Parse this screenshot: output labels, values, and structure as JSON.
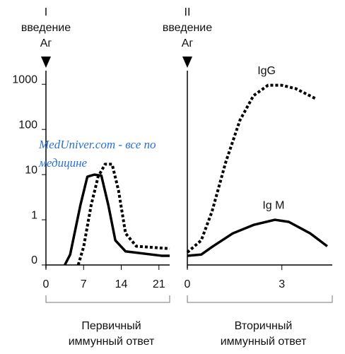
{
  "watermark": [
    "MedUniver.com - все по",
    "медицине"
  ],
  "chart_data": [
    {
      "type": "line",
      "log_y": true,
      "color": "#000",
      "marker_label": [
        "I",
        "введение",
        "Аг"
      ],
      "caption": [
        "Первичный",
        "иммунный ответ"
      ],
      "xlim": [
        0,
        23
      ],
      "xticks": [
        0,
        7,
        14,
        21
      ],
      "ylim": [
        0.1,
        2000
      ],
      "yticks": [
        {
          "value": 0.1,
          "label": "0"
        },
        1,
        10,
        100,
        1000
      ],
      "series": [
        {
          "style": "solid",
          "x": [
            3.5,
            4.5,
            6.4,
            7.7,
            9,
            10.3,
            11.6,
            12.9,
            14.8,
            21.5,
            23
          ],
          "values": [
            0.1,
            0.17,
            2.1,
            9,
            10,
            9.5,
            2.1,
            0.35,
            0.2,
            0.16,
            0.16
          ]
        },
        {
          "style": "dashed",
          "x": [
            6,
            7,
            8.4,
            9.7,
            11,
            12.3,
            13.5,
            14.8,
            16.8,
            23
          ],
          "values": [
            0.1,
            0.25,
            2.1,
            9,
            17,
            17,
            4.4,
            0.5,
            0.26,
            0.23
          ]
        }
      ]
    },
    {
      "type": "line",
      "log_y": true,
      "color": "#000",
      "marker_label": [
        "II",
        "введение",
        "Аг"
      ],
      "caption": [
        "Вторичный",
        "иммунный ответ"
      ],
      "xlim": [
        0,
        4.6
      ],
      "xticks": [
        0,
        3
      ],
      "ylim": [
        0.1,
        2000
      ],
      "series": [
        {
          "name": "IgG",
          "style": "dashed",
          "x": [
            0,
            0.44,
            0.78,
            1.22,
            1.67,
            2.1,
            2.56,
            3,
            3.44,
            4.1
          ],
          "values": [
            0.19,
            0.35,
            1.5,
            19,
            160,
            560,
            950,
            950,
            800,
            470
          ]
        },
        {
          "name": "Ig M",
          "style": "solid",
          "x": [
            0,
            0.44,
            0.78,
            1.44,
            2.1,
            2.78,
            3.22,
            3.9,
            4.44
          ],
          "values": [
            0.16,
            0.17,
            0.25,
            0.5,
            0.77,
            1,
            0.9,
            0.5,
            0.26
          ]
        }
      ]
    }
  ]
}
